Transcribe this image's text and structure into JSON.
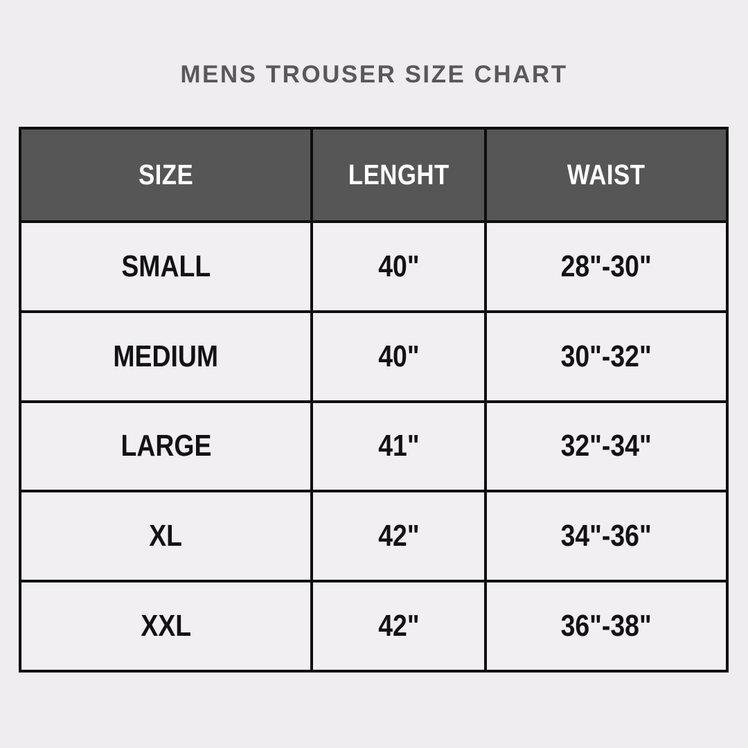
{
  "page": {
    "title": "MENS TROUSER SIZE CHART"
  },
  "colors": {
    "page_bg": "#EFEDF0",
    "title_text": "#595959",
    "header_bg": "#565656",
    "header_text": "#FFFFFF",
    "cell_bg": "#F1EFF2",
    "body_text": "#121212",
    "grid_border": "#0D0D0D"
  },
  "chart_data": {
    "type": "table",
    "title": "MENS TROUSER SIZE CHART",
    "columns": [
      "SIZE",
      "LENGHT",
      "WAIST"
    ],
    "rows": [
      [
        "SMALL",
        "40\"",
        "28\"-30\""
      ],
      [
        "MEDIUM",
        "40\"",
        "30\"-32\""
      ],
      [
        "LARGE",
        "41\"",
        "32\"-34\""
      ],
      [
        "XL",
        "42\"",
        "34\"-36\""
      ],
      [
        "XXL",
        "42\"",
        "36\"-38\""
      ]
    ]
  }
}
